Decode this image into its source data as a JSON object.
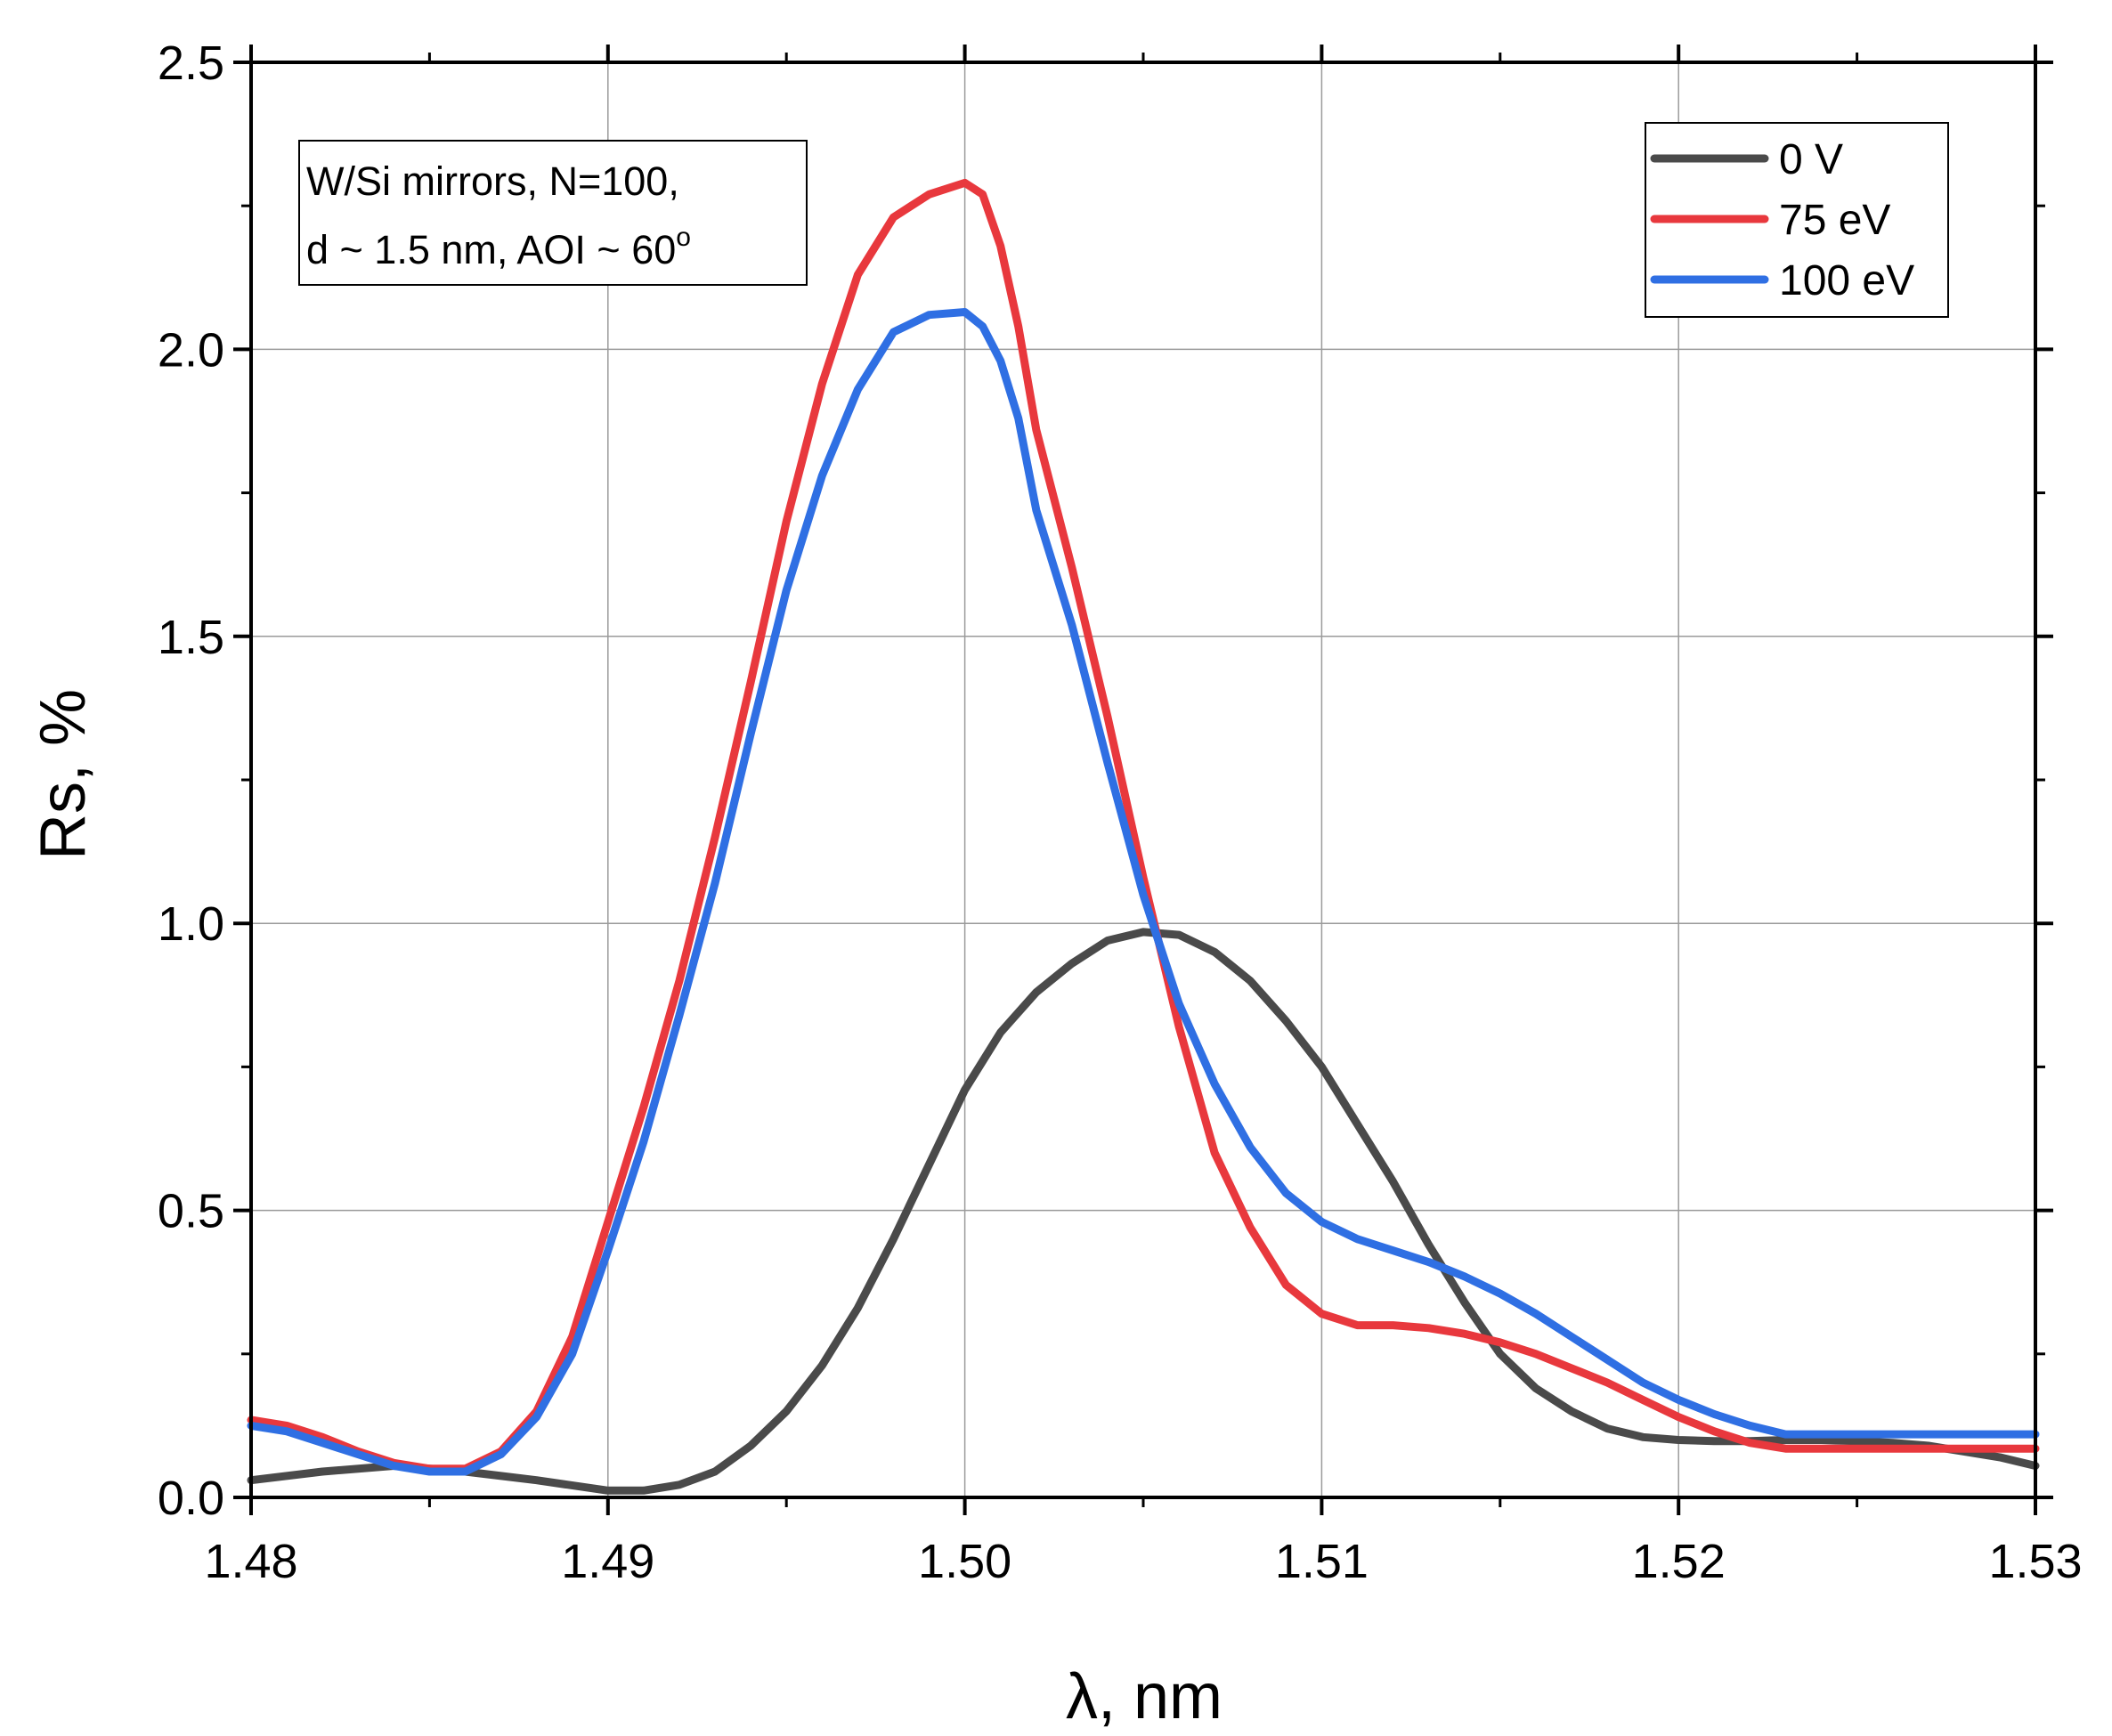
{
  "chart_data": {
    "type": "line",
    "title": "",
    "xlabel": "λ, nm",
    "ylabel": "Rs, %",
    "xlim": [
      1.48,
      1.53
    ],
    "ylim": [
      0,
      2.5
    ],
    "xticks": [
      "1.48",
      "1.49",
      "1.50",
      "1.51",
      "1.52",
      "1.53"
    ],
    "yticks": [
      "0.0",
      "0.5",
      "1.0",
      "1.5",
      "2.0",
      "2.5"
    ],
    "grid": true,
    "legend_position": "top-right",
    "annotation": {
      "line1": "W/Si mirrors, N=100,",
      "line2_text": "d ~ 1.5 nm, AOI ~ 60",
      "line2_sup": "o"
    },
    "series": [
      {
        "name": "0 V",
        "color": "#4a4a4a",
        "x": [
          1.48,
          1.482,
          1.484,
          1.486,
          1.488,
          1.49,
          1.491,
          1.492,
          1.493,
          1.494,
          1.495,
          1.496,
          1.497,
          1.498,
          1.499,
          1.5,
          1.501,
          1.502,
          1.503,
          1.504,
          1.505,
          1.506,
          1.507,
          1.508,
          1.509,
          1.51,
          1.511,
          1.512,
          1.513,
          1.514,
          1.515,
          1.516,
          1.517,
          1.518,
          1.519,
          1.52,
          1.521,
          1.522,
          1.523,
          1.524,
          1.525,
          1.526,
          1.527,
          1.528,
          1.529,
          1.53
        ],
        "y": [
          0.03,
          0.045,
          0.055,
          0.045,
          0.03,
          0.012,
          0.012,
          0.022,
          0.045,
          0.09,
          0.15,
          0.23,
          0.33,
          0.45,
          0.58,
          0.71,
          0.81,
          0.88,
          0.93,
          0.97,
          0.985,
          0.98,
          0.95,
          0.9,
          0.83,
          0.75,
          0.65,
          0.55,
          0.44,
          0.34,
          0.25,
          0.19,
          0.15,
          0.12,
          0.105,
          0.1,
          0.098,
          0.098,
          0.1,
          0.1,
          0.098,
          0.095,
          0.09,
          0.08,
          0.07,
          0.055
        ]
      },
      {
        "name": "75 eV",
        "color": "#e8383d",
        "x": [
          1.48,
          1.481,
          1.482,
          1.483,
          1.484,
          1.485,
          1.486,
          1.487,
          1.488,
          1.489,
          1.49,
          1.491,
          1.492,
          1.493,
          1.494,
          1.495,
          1.496,
          1.497,
          1.498,
          1.499,
          1.5,
          1.5005,
          1.501,
          1.5015,
          1.502,
          1.503,
          1.504,
          1.505,
          1.506,
          1.507,
          1.508,
          1.509,
          1.51,
          1.511,
          1.512,
          1.513,
          1.514,
          1.515,
          1.516,
          1.517,
          1.518,
          1.519,
          1.52,
          1.521,
          1.522,
          1.523,
          1.524,
          1.525,
          1.526,
          1.527,
          1.528,
          1.529,
          1.53
        ],
        "y": [
          0.135,
          0.125,
          0.105,
          0.08,
          0.06,
          0.05,
          0.05,
          0.08,
          0.15,
          0.28,
          0.48,
          0.68,
          0.9,
          1.15,
          1.42,
          1.7,
          1.94,
          2.13,
          2.23,
          2.27,
          2.29,
          2.27,
          2.18,
          2.04,
          1.86,
          1.62,
          1.36,
          1.08,
          0.82,
          0.6,
          0.47,
          0.37,
          0.32,
          0.3,
          0.3,
          0.295,
          0.285,
          0.27,
          0.25,
          0.225,
          0.2,
          0.17,
          0.14,
          0.115,
          0.095,
          0.085,
          0.085,
          0.085,
          0.085,
          0.085,
          0.085,
          0.085,
          0.085
        ]
      },
      {
        "name": "100 eV",
        "color": "#2f6fe3",
        "x": [
          1.48,
          1.481,
          1.482,
          1.483,
          1.484,
          1.485,
          1.486,
          1.487,
          1.488,
          1.489,
          1.49,
          1.491,
          1.492,
          1.493,
          1.494,
          1.495,
          1.496,
          1.497,
          1.498,
          1.499,
          1.5,
          1.5005,
          1.501,
          1.5015,
          1.502,
          1.503,
          1.504,
          1.505,
          1.506,
          1.507,
          1.508,
          1.509,
          1.51,
          1.511,
          1.512,
          1.513,
          1.514,
          1.515,
          1.516,
          1.517,
          1.518,
          1.519,
          1.52,
          1.521,
          1.522,
          1.523,
          1.524,
          1.525,
          1.526,
          1.527,
          1.528,
          1.529,
          1.53
        ],
        "y": [
          0.125,
          0.115,
          0.095,
          0.075,
          0.055,
          0.045,
          0.045,
          0.075,
          0.14,
          0.25,
          0.43,
          0.62,
          0.84,
          1.07,
          1.33,
          1.58,
          1.78,
          1.93,
          2.03,
          2.06,
          2.065,
          2.04,
          1.98,
          1.88,
          1.72,
          1.52,
          1.28,
          1.05,
          0.86,
          0.72,
          0.61,
          0.53,
          0.48,
          0.45,
          0.43,
          0.41,
          0.385,
          0.355,
          0.32,
          0.28,
          0.24,
          0.2,
          0.17,
          0.145,
          0.125,
          0.11,
          0.11,
          0.11,
          0.11,
          0.11,
          0.11,
          0.11,
          0.11
        ]
      }
    ]
  }
}
